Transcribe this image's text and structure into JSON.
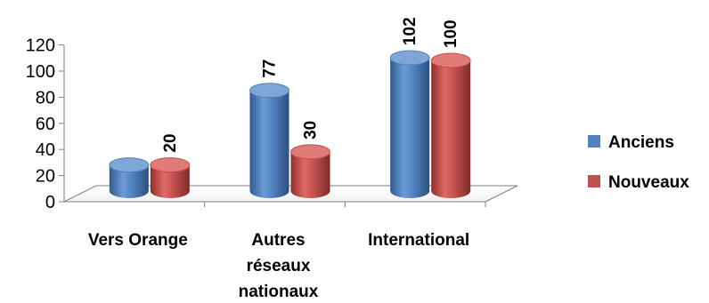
{
  "chart_data": {
    "type": "bar",
    "style": "3d-cylinder",
    "categories": [
      [
        "Vers Orange"
      ],
      [
        "Autres",
        "réseaux",
        "nationaux"
      ],
      [
        "International"
      ]
    ],
    "series": [
      {
        "name": "Anciens",
        "values": [
          20,
          77,
          102
        ],
        "color": "#4f81bd"
      },
      {
        "name": "Nouveaux",
        "values": [
          20,
          30,
          100
        ],
        "color": "#c0504d"
      }
    ],
    "data_labels": [
      {
        "text": "20",
        "value": 20
      },
      {
        "text": "77",
        "value": 77
      },
      {
        "text": "30",
        "value": 30
      },
      {
        "text": "102",
        "value": 102
      },
      {
        "text": "100",
        "value": 100
      }
    ],
    "y_ticks": [
      "0",
      "20",
      "40",
      "60",
      "80",
      "100",
      "120"
    ],
    "ylim": [
      0,
      120
    ],
    "grid": false,
    "legend_position": "right"
  }
}
